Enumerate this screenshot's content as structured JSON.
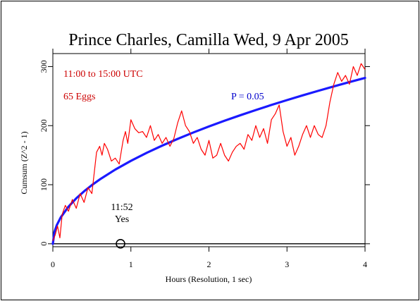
{
  "chart_data": {
    "type": "line",
    "title": "Prince Charles, Camilla Wed, 9 Apr 2005",
    "xlabel": "Hours (Resolution, 1 sec)",
    "ylabel": "Cumsum (Z^2 - 1)",
    "xlim": [
      0,
      4
    ],
    "ylim": [
      -5,
      322
    ],
    "xticks": [
      0,
      1,
      2,
      3,
      4
    ],
    "yticks": [
      0,
      100,
      200,
      300
    ],
    "grid": false,
    "annotations": {
      "time_window": "11:00 to 15:00 UTC",
      "eggs": "65 Eggs",
      "p_label": "P = 0.05",
      "event_time": "11:52",
      "event_label": "Yes"
    },
    "event_x": 0.867,
    "colors": {
      "data": "#ff0000",
      "envelope": "#1a1aff",
      "baseline": "#000000",
      "annotation_red": "#cc0000",
      "annotation_blue": "#0000cc"
    },
    "series": [
      {
        "x": [
          0,
          0.03,
          0.06,
          0.09,
          0.12,
          0.16,
          0.2,
          0.25,
          0.3,
          0.35,
          0.4,
          0.45,
          0.5,
          0.53,
          0.56,
          0.6,
          0.63,
          0.66,
          0.7,
          0.75,
          0.8,
          0.85,
          0.9,
          0.93,
          0.96,
          1.0,
          1.05,
          1.1,
          1.15,
          1.2,
          1.25,
          1.3,
          1.35,
          1.4,
          1.45,
          1.5,
          1.55,
          1.6,
          1.65,
          1.7,
          1.75,
          1.8,
          1.85,
          1.9,
          1.95,
          2.0,
          2.05,
          2.1,
          2.15,
          2.2,
          2.25,
          2.3,
          2.35,
          2.4,
          2.45,
          2.5,
          2.55,
          2.6,
          2.65,
          2.7,
          2.75,
          2.8,
          2.85,
          2.9,
          2.95,
          3.0,
          3.05,
          3.1,
          3.15,
          3.2,
          3.25,
          3.3,
          3.35,
          3.4,
          3.45,
          3.5,
          3.55,
          3.6,
          3.65,
          3.7,
          3.75,
          3.8,
          3.85,
          3.9,
          3.95,
          4.0
        ],
        "values": [
          5,
          15,
          30,
          10,
          50,
          65,
          55,
          75,
          60,
          85,
          70,
          95,
          85,
          120,
          155,
          165,
          150,
          170,
          160,
          140,
          145,
          135,
          175,
          190,
          170,
          210,
          195,
          188,
          190,
          180,
          200,
          175,
          185,
          170,
          180,
          165,
          178,
          205,
          225,
          200,
          190,
          170,
          180,
          160,
          150,
          175,
          145,
          150,
          170,
          150,
          140,
          155,
          165,
          170,
          160,
          185,
          175,
          200,
          180,
          195,
          170,
          210,
          220,
          235,
          190,
          165,
          180,
          150,
          165,
          185,
          200,
          180,
          200,
          185,
          180,
          200,
          240,
          270,
          290,
          275,
          285,
          270,
          300,
          285,
          305,
          295
        ]
      },
      {
        "name": "P = 0.05",
        "x": [
          0,
          0.02,
          0.05,
          0.1,
          0.2,
          0.3,
          0.4,
          0.5,
          0.6,
          0.8,
          1.0,
          1.2,
          1.4,
          1.6,
          1.8,
          2.0,
          2.2,
          2.4,
          2.6,
          2.8,
          3.0,
          3.2,
          3.4,
          3.6,
          3.8,
          4.0
        ],
        "values": [
          0,
          19.9,
          31.4,
          44.4,
          62.8,
          76.9,
          88.8,
          99.3,
          108.8,
          125.6,
          140.4,
          153.8,
          166.1,
          177.6,
          188.4,
          198.6,
          208.3,
          217.5,
          226.4,
          235.0,
          243.2,
          251.2,
          258.9,
          266.4,
          273.7,
          280.8
        ]
      }
    ]
  }
}
